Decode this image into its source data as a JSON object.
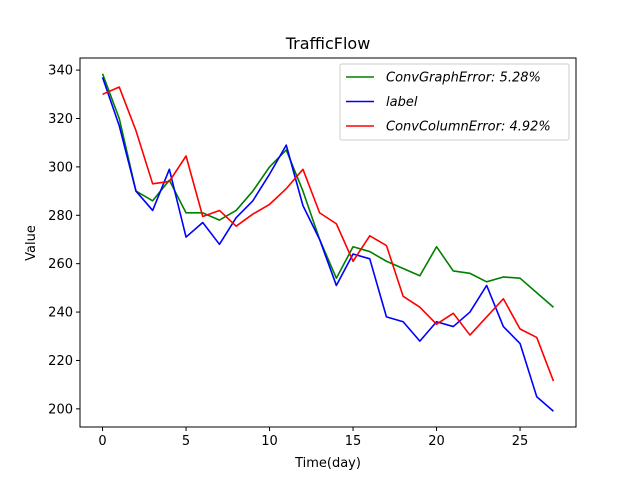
{
  "chart_data": {
    "type": "line",
    "title": "TrafficFlow",
    "xlabel": "Time(day)",
    "ylabel": "Value",
    "xlim": [
      -1.35,
      28.35
    ],
    "ylim": [
      192.5,
      345.0
    ],
    "xticks": [
      0,
      5,
      10,
      15,
      20,
      25
    ],
    "yticks": [
      200,
      220,
      240,
      260,
      280,
      300,
      320,
      340
    ],
    "grid": false,
    "legend_position": "top-right",
    "x": [
      0,
      1,
      2,
      3,
      4,
      5,
      6,
      7,
      8,
      9,
      10,
      11,
      12,
      13,
      14,
      15,
      16,
      17,
      18,
      19,
      20,
      21,
      22,
      23,
      24,
      25,
      26,
      27
    ],
    "series": [
      {
        "name": "ConvGraphError: 5.28%",
        "color": "#008000",
        "values": [
          338.5,
          320,
          290,
          286,
          294.5,
          281,
          281,
          278,
          282,
          290,
          300,
          307,
          290,
          270,
          254,
          267,
          265,
          261,
          258,
          255,
          267,
          257,
          256,
          252.5,
          254.5,
          254,
          248,
          242
        ]
      },
      {
        "name": "label",
        "color": "#0000ff",
        "values": [
          337,
          317,
          290,
          282,
          299,
          271,
          277,
          268,
          279,
          286,
          297,
          309,
          284,
          270,
          251,
          264,
          262,
          238,
          236,
          228,
          236,
          234,
          240,
          251,
          234,
          227,
          205,
          199
        ]
      },
      {
        "name": "ConvColumnError: 4.92%",
        "color": "#ff0000",
        "values": [
          330,
          333,
          315,
          293,
          294,
          304.5,
          279.5,
          282,
          275.5,
          280.5,
          284.5,
          291,
          299,
          281,
          276.5,
          261,
          271.5,
          267.5,
          246.5,
          242,
          235,
          239.5,
          230.5,
          238,
          245.5,
          233,
          229.5,
          211.5
        ]
      }
    ]
  }
}
